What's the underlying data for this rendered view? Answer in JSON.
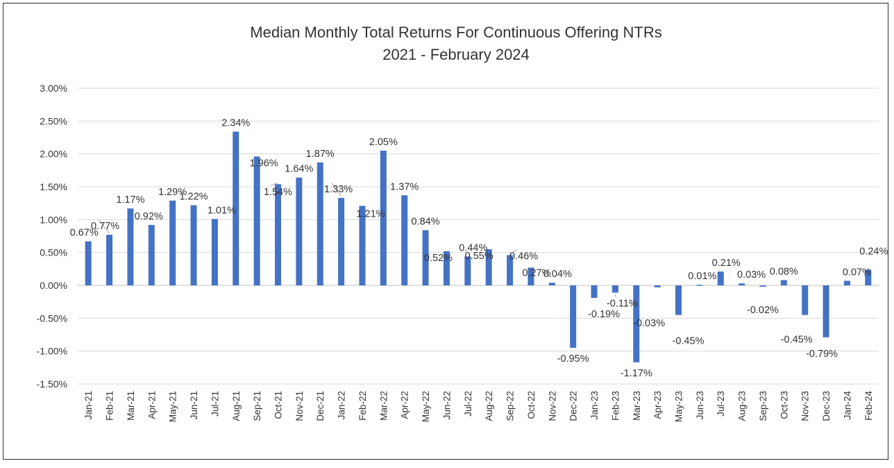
{
  "chart_data": {
    "type": "bar",
    "title": "Median Monthly Total Returns For Continuous Offering NTRs",
    "subtitle": "2021 - February 2024",
    "xlabel": "",
    "ylabel": "",
    "ylim": [
      -1.5,
      3.0
    ],
    "y_ticks": [
      "3.00%",
      "2.50%",
      "2.00%",
      "1.50%",
      "1.00%",
      "0.50%",
      "0.00%",
      "-0.50%",
      "-1.00%",
      "-1.50%"
    ],
    "y_tick_values": [
      3.0,
      2.5,
      2.0,
      1.5,
      1.0,
      0.5,
      0.0,
      -0.5,
      -1.0,
      -1.5
    ],
    "grid": true,
    "legend": "none",
    "bar_color": "#4472c4",
    "categories": [
      "Jan-21",
      "Feb-21",
      "Mar-21",
      "Apr-21",
      "May-21",
      "Jun-21",
      "Jul-21",
      "Aug-21",
      "Sep-21",
      "Oct-21",
      "Nov-21",
      "Dec-21",
      "Jan-22",
      "Feb-22",
      "Mar-22",
      "Apr-22",
      "May-22",
      "Jun-22",
      "Jul-22",
      "Aug-22",
      "Sep-22",
      "Oct-22",
      "Nov-22",
      "Dec-22",
      "Jan-23",
      "Feb-23",
      "Mar-23",
      "Apr-23",
      "May-23",
      "Jun-23",
      "Jul-23",
      "Aug-23",
      "Sep-23",
      "Oct-23",
      "Nov-23",
      "Dec-23",
      "Jan-24",
      "Feb-24"
    ],
    "values": [
      0.67,
      0.77,
      1.17,
      0.92,
      1.29,
      1.22,
      1.01,
      2.34,
      1.96,
      1.54,
      1.64,
      1.87,
      1.33,
      1.21,
      2.05,
      1.37,
      0.84,
      0.52,
      0.44,
      0.55,
      0.46,
      0.27,
      0.04,
      -0.95,
      -0.19,
      -0.11,
      -1.17,
      -0.03,
      -0.45,
      0.01,
      0.21,
      0.03,
      -0.02,
      0.08,
      -0.45,
      -0.79,
      0.07,
      0.24
    ],
    "data_labels": [
      "0.67%",
      "0.77%",
      "1.17%",
      "0.92%",
      "1.29%",
      "1.22%",
      "1.01%",
      "2.34%",
      "1.96%",
      "1.54%",
      "1.64%",
      "1.87%",
      "1.33%",
      "1.21%",
      "2.05%",
      "1.37%",
      "0.84%",
      "0.52%",
      "0.44%",
      "0.55%",
      "0.46%",
      "0.27%",
      "0.04%",
      "-0.95%",
      "-0.19%",
      "-0.11%",
      "-1.17%",
      "-0.03%",
      "-0.45%",
      "0.01%",
      "0.21%",
      "0.03%",
      "-0.02%",
      "0.08%",
      "-0.45%",
      "-0.79%",
      "0.07%",
      "0.24%"
    ]
  }
}
